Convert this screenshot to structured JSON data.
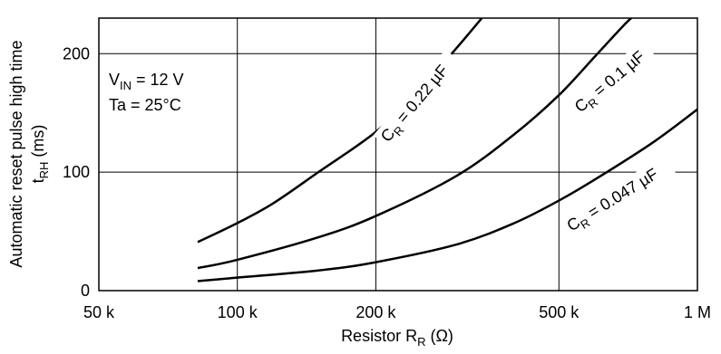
{
  "chart_data": {
    "type": "line",
    "xscale": "log",
    "xlim": [
      50000,
      1000000
    ],
    "ylim": [
      0,
      230
    ],
    "grid": true,
    "x_ticks": [
      {
        "value": 50000,
        "label": "50 k"
      },
      {
        "value": 100000,
        "label": "100 k"
      },
      {
        "value": 200000,
        "label": "200 k"
      },
      {
        "value": 500000,
        "label": "500 k"
      },
      {
        "value": 1000000,
        "label": "1 M"
      }
    ],
    "y_ticks": [
      {
        "value": 0,
        "label": "0"
      },
      {
        "value": 100,
        "label": "100"
      },
      {
        "value": 200,
        "label": "200"
      }
    ],
    "xlabel": {
      "main": "Resistor  R",
      "sub": "R",
      "unit": "  (Ω)"
    },
    "ylabel": {
      "line1": "Automatic reset pulse high time",
      "line2_main": "t",
      "line2_sub": "RH",
      "line2_unit": " (ms)"
    },
    "conditions": {
      "vin_main": "V",
      "vin_sub": "IN",
      "vin_value": " = 12 V",
      "ta": "Ta = 25°C"
    },
    "series": [
      {
        "name": "C_R = 0.22 µF",
        "label_main": "C",
        "label_sub": "R",
        "label_value": " = 0.22 µF",
        "x": [
          82000,
          100000,
          120000,
          150000,
          200000,
          250000,
          300000,
          340000
        ],
        "y": [
          41,
          57,
          74,
          100,
          134,
          170,
          205,
          230
        ]
      },
      {
        "name": "C_R = 0.1 µF",
        "label_main": "C",
        "label_sub": "R",
        "label_value": " = 0.1 µF",
        "x": [
          82000,
          100000,
          150000,
          200000,
          300000,
          400000,
          500000,
          600000,
          700000,
          750000
        ],
        "y": [
          19,
          26,
          45,
          63,
          97,
          132,
          165,
          198,
          226,
          236
        ]
      },
      {
        "name": "C_R = 0.047 µF",
        "label_main": "C",
        "label_sub": "R",
        "label_value": " = 0.047 µF",
        "x": [
          82000,
          100000,
          150000,
          200000,
          300000,
          400000,
          500000,
          600000,
          800000,
          1000000
        ],
        "y": [
          8,
          11,
          17,
          24,
          39,
          57,
          76,
          94,
          125,
          153
        ]
      }
    ]
  }
}
